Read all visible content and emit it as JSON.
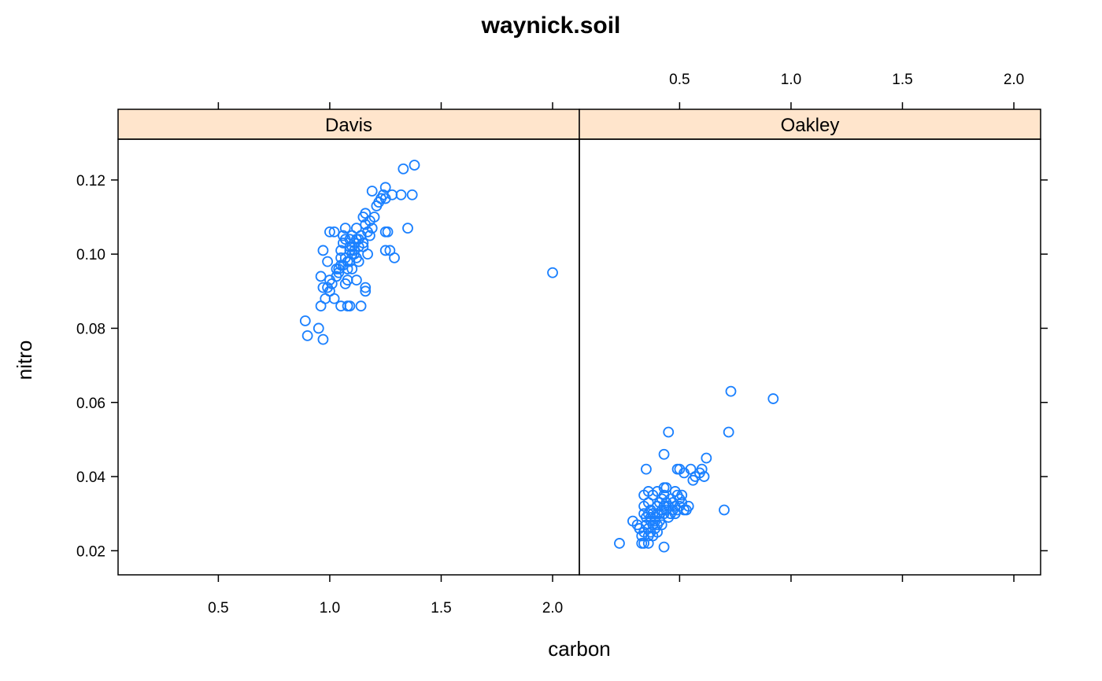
{
  "chart_data": {
    "type": "scatter",
    "title": "waynick.soil",
    "xlabel": "carbon",
    "ylabel": "nitro",
    "xlim": [
      0.05,
      2.12
    ],
    "ylim": [
      0.0135,
      0.131
    ],
    "xticks": [
      0.5,
      1.0,
      1.5,
      2.0
    ],
    "xtick_labels": [
      "0.5",
      "1.0",
      "1.5",
      "2.0"
    ],
    "yticks": [
      0.02,
      0.04,
      0.06,
      0.08,
      0.1,
      0.12
    ],
    "ytick_labels": [
      "0.02",
      "0.04",
      "0.06",
      "0.08",
      "0.10",
      "0.12"
    ],
    "colors": {
      "point": "#1a80ff",
      "strip_bg": "#ffe5cc",
      "frame": "#000000"
    },
    "grid": false,
    "panels": [
      {
        "name": "Davis",
        "points": [
          [
            0.89,
            0.082
          ],
          [
            0.9,
            0.078
          ],
          [
            0.95,
            0.08
          ],
          [
            0.97,
            0.077
          ],
          [
            0.96,
            0.086
          ],
          [
            0.96,
            0.094
          ],
          [
            0.97,
            0.101
          ],
          [
            0.97,
            0.091
          ],
          [
            0.98,
            0.088
          ],
          [
            0.99,
            0.098
          ],
          [
            0.99,
            0.091
          ],
          [
            1.0,
            0.093
          ],
          [
            1.0,
            0.09
          ],
          [
            1.01,
            0.092
          ],
          [
            1.02,
            0.088
          ],
          [
            1.0,
            0.106
          ],
          [
            1.02,
            0.106
          ],
          [
            1.03,
            0.094
          ],
          [
            1.04,
            0.096
          ],
          [
            1.05,
            0.101
          ],
          [
            1.05,
            0.099
          ],
          [
            1.05,
            0.086
          ],
          [
            1.06,
            0.103
          ],
          [
            1.06,
            0.105
          ],
          [
            1.06,
            0.097
          ],
          [
            1.07,
            0.099
          ],
          [
            1.07,
            0.092
          ],
          [
            1.07,
            0.107
          ],
          [
            1.08,
            0.096
          ],
          [
            1.08,
            0.093
          ],
          [
            1.08,
            0.086
          ],
          [
            1.09,
            0.086
          ],
          [
            1.09,
            0.104
          ],
          [
            1.09,
            0.102
          ],
          [
            1.09,
            0.098
          ],
          [
            1.1,
            0.1
          ],
          [
            1.1,
            0.105
          ],
          [
            1.1,
            0.096
          ],
          [
            1.11,
            0.103
          ],
          [
            1.11,
            0.101
          ],
          [
            1.12,
            0.104
          ],
          [
            1.12,
            0.107
          ],
          [
            1.12,
            0.093
          ],
          [
            1.13,
            0.102
          ],
          [
            1.13,
            0.098
          ],
          [
            1.14,
            0.086
          ],
          [
            1.14,
            0.105
          ],
          [
            1.15,
            0.11
          ],
          [
            1.15,
            0.102
          ],
          [
            1.16,
            0.111
          ],
          [
            1.16,
            0.108
          ],
          [
            1.16,
            0.091
          ],
          [
            1.16,
            0.09
          ],
          [
            1.17,
            0.1
          ],
          [
            1.17,
            0.106
          ],
          [
            1.18,
            0.109
          ],
          [
            1.18,
            0.105
          ],
          [
            1.19,
            0.117
          ],
          [
            1.19,
            0.107
          ],
          [
            1.2,
            0.11
          ],
          [
            1.21,
            0.113
          ],
          [
            1.22,
            0.114
          ],
          [
            1.23,
            0.115
          ],
          [
            1.24,
            0.116
          ],
          [
            1.25,
            0.115
          ],
          [
            1.25,
            0.118
          ],
          [
            1.25,
            0.106
          ],
          [
            1.25,
            0.101
          ],
          [
            1.26,
            0.106
          ],
          [
            1.27,
            0.101
          ],
          [
            1.28,
            0.116
          ],
          [
            1.29,
            0.099
          ],
          [
            1.32,
            0.116
          ],
          [
            1.33,
            0.123
          ],
          [
            1.35,
            0.107
          ],
          [
            1.37,
            0.116
          ],
          [
            1.38,
            0.124
          ],
          [
            2.0,
            0.095
          ],
          [
            1.05,
            0.097
          ],
          [
            1.08,
            0.098
          ],
          [
            1.11,
            0.1
          ],
          [
            1.13,
            0.104
          ],
          [
            1.15,
            0.103
          ],
          [
            1.1,
            0.102
          ],
          [
            1.07,
            0.104
          ],
          [
            1.12,
            0.099
          ],
          [
            1.04,
            0.095
          ],
          [
            1.03,
            0.096
          ],
          [
            1.09,
            0.101
          ],
          [
            1.14,
            0.105
          ]
        ]
      },
      {
        "name": "Oakley",
        "points": [
          [
            0.23,
            0.022
          ],
          [
            0.29,
            0.028
          ],
          [
            0.31,
            0.027
          ],
          [
            0.32,
            0.026
          ],
          [
            0.33,
            0.022
          ],
          [
            0.33,
            0.024
          ],
          [
            0.34,
            0.025
          ],
          [
            0.34,
            0.022
          ],
          [
            0.34,
            0.03
          ],
          [
            0.34,
            0.032
          ],
          [
            0.34,
            0.035
          ],
          [
            0.35,
            0.027
          ],
          [
            0.35,
            0.029
          ],
          [
            0.35,
            0.042
          ],
          [
            0.36,
            0.022
          ],
          [
            0.36,
            0.024
          ],
          [
            0.36,
            0.026
          ],
          [
            0.36,
            0.03
          ],
          [
            0.36,
            0.033
          ],
          [
            0.36,
            0.036
          ],
          [
            0.37,
            0.025
          ],
          [
            0.37,
            0.028
          ],
          [
            0.37,
            0.029
          ],
          [
            0.37,
            0.031
          ],
          [
            0.38,
            0.024
          ],
          [
            0.38,
            0.027
          ],
          [
            0.38,
            0.03
          ],
          [
            0.38,
            0.035
          ],
          [
            0.39,
            0.026
          ],
          [
            0.39,
            0.028
          ],
          [
            0.39,
            0.029
          ],
          [
            0.4,
            0.025
          ],
          [
            0.4,
            0.027
          ],
          [
            0.4,
            0.03
          ],
          [
            0.4,
            0.032
          ],
          [
            0.4,
            0.036
          ],
          [
            0.41,
            0.028
          ],
          [
            0.41,
            0.03
          ],
          [
            0.41,
            0.033
          ],
          [
            0.42,
            0.027
          ],
          [
            0.42,
            0.031
          ],
          [
            0.42,
            0.034
          ],
          [
            0.43,
            0.021
          ],
          [
            0.43,
            0.03
          ],
          [
            0.43,
            0.032
          ],
          [
            0.43,
            0.035
          ],
          [
            0.43,
            0.037
          ],
          [
            0.43,
            0.046
          ],
          [
            0.44,
            0.031
          ],
          [
            0.44,
            0.033
          ],
          [
            0.44,
            0.037
          ],
          [
            0.45,
            0.029
          ],
          [
            0.45,
            0.032
          ],
          [
            0.45,
            0.052
          ],
          [
            0.46,
            0.03
          ],
          [
            0.46,
            0.034
          ],
          [
            0.47,
            0.031
          ],
          [
            0.47,
            0.033
          ],
          [
            0.48,
            0.03
          ],
          [
            0.48,
            0.032
          ],
          [
            0.48,
            0.036
          ],
          [
            0.49,
            0.031
          ],
          [
            0.49,
            0.035
          ],
          [
            0.49,
            0.042
          ],
          [
            0.5,
            0.032
          ],
          [
            0.5,
            0.034
          ],
          [
            0.5,
            0.042
          ],
          [
            0.51,
            0.033
          ],
          [
            0.51,
            0.035
          ],
          [
            0.52,
            0.031
          ],
          [
            0.52,
            0.041
          ],
          [
            0.53,
            0.031
          ],
          [
            0.54,
            0.032
          ],
          [
            0.55,
            0.042
          ],
          [
            0.56,
            0.039
          ],
          [
            0.57,
            0.04
          ],
          [
            0.59,
            0.041
          ],
          [
            0.6,
            0.042
          ],
          [
            0.61,
            0.04
          ],
          [
            0.62,
            0.045
          ],
          [
            0.7,
            0.031
          ],
          [
            0.72,
            0.052
          ],
          [
            0.73,
            0.063
          ],
          [
            0.92,
            0.061
          ]
        ]
      }
    ]
  }
}
